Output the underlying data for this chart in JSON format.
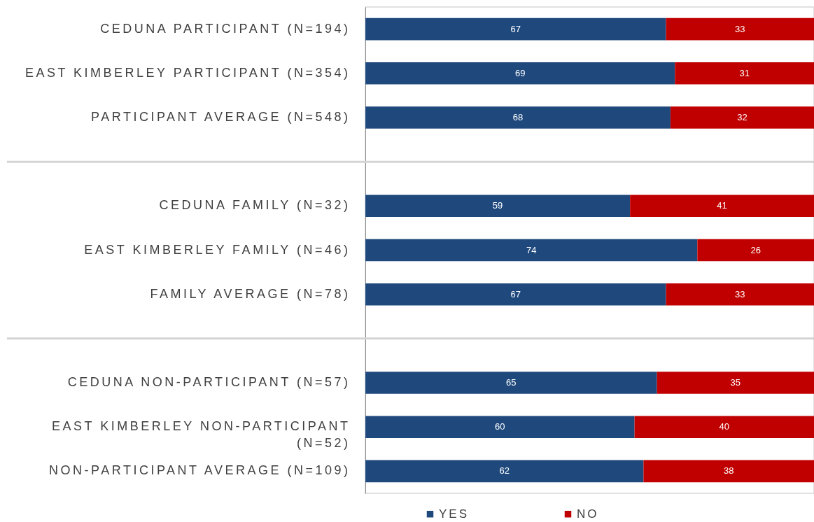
{
  "chart_data": {
    "type": "bar",
    "orientation": "horizontal",
    "stacked": true,
    "categories": [
      "CEDUNA PARTICIPANT (N=194)",
      "EAST KIMBERLEY PARTICIPANT (N=354)",
      "PARTICIPANT AVERAGE (N=548)",
      null,
      "CEDUNA FAMILY (N=32)",
      "EAST KIMBERLEY FAMILY (N=46)",
      "FAMILY AVERAGE (N=78)",
      null,
      "CEDUNA NON-PARTICIPANT (N=57)",
      "EAST KIMBERLEY NON-PARTICIPANT (N=52)",
      "NON-PARTICIPANT AVERAGE (N=109)"
    ],
    "series": [
      {
        "name": "YES",
        "color": "#1f497d",
        "values": [
          67,
          69,
          68,
          null,
          59,
          74,
          67,
          null,
          65,
          60,
          62
        ]
      },
      {
        "name": "NO",
        "color": "#c00000",
        "values": [
          33,
          31,
          32,
          null,
          41,
          26,
          33,
          null,
          35,
          40,
          38
        ]
      }
    ],
    "data_labels": true,
    "legend": "bottom"
  }
}
